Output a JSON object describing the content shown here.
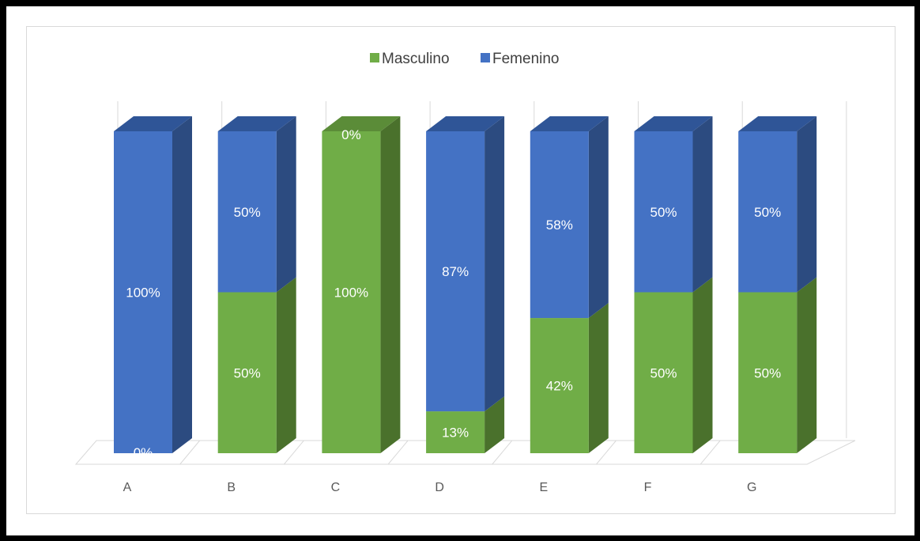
{
  "chart_data": {
    "type": "bar",
    "stacked": true,
    "percent": true,
    "three_d": true,
    "title": "",
    "xlabel": "",
    "ylabel": "",
    "ylim": [
      0,
      100
    ],
    "grid": true,
    "legend_position": "top",
    "categories": [
      "A",
      "B",
      "C",
      "D",
      "E",
      "F",
      "G"
    ],
    "series": [
      {
        "name": "Masculino",
        "color": "#70ad47",
        "side_color": "#4a712c",
        "top_color": "#5b8c38",
        "values": [
          0,
          50,
          100,
          13,
          42,
          50,
          50
        ],
        "labels": [
          "0%",
          "50%",
          "100%",
          "13%",
          "42%",
          "50%",
          "50%"
        ]
      },
      {
        "name": "Femenino",
        "color": "#4472c4",
        "side_color": "#2c4b80",
        "top_color": "#2f5597",
        "values": [
          100,
          50,
          0,
          87,
          58,
          50,
          50
        ],
        "labels": [
          "100%",
          "50%",
          "0%",
          "87%",
          "58%",
          "50%",
          "50%"
        ]
      }
    ]
  }
}
